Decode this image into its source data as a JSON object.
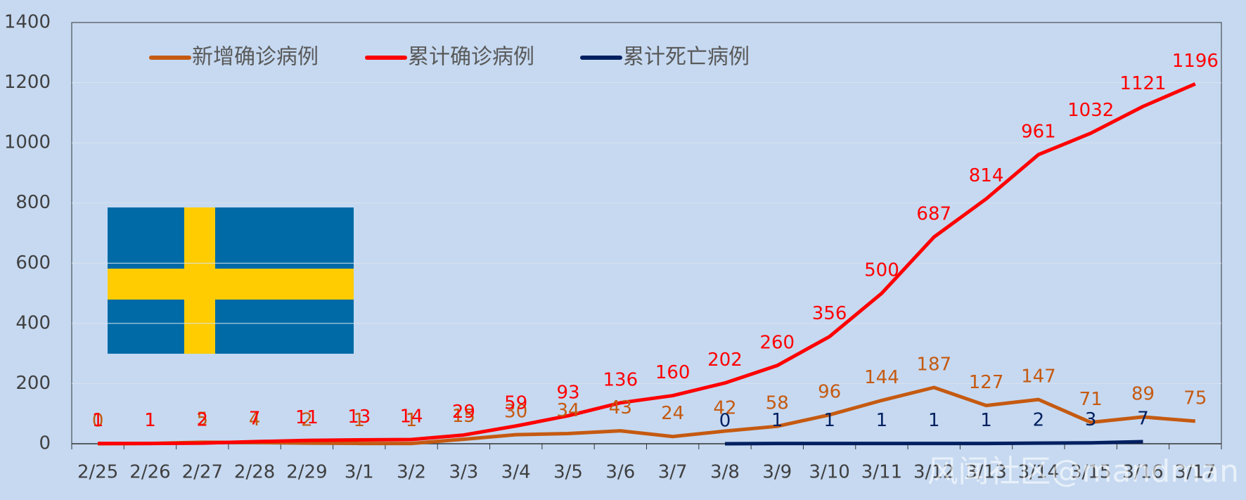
{
  "chart_data": {
    "type": "line",
    "categories": [
      "2/25",
      "2/26",
      "2/27",
      "2/28",
      "2/29",
      "3/1",
      "3/2",
      "3/3",
      "3/4",
      "3/5",
      "3/6",
      "3/7",
      "3/8",
      "3/9",
      "3/10",
      "3/11",
      "3/12",
      "3/13",
      "3/14",
      "3/15",
      "3/16",
      "3/17"
    ],
    "series": [
      {
        "name": "新增确诊病例",
        "color": "#c55a11",
        "values": [
          0,
          1,
          5,
          4,
          2,
          1,
          1,
          15,
          30,
          34,
          43,
          24,
          42,
          58,
          96,
          144,
          187,
          127,
          147,
          71,
          89,
          75
        ]
      },
      {
        "name": "累计确诊病例",
        "color": "#ff0000",
        "values": [
          1,
          1,
          2,
          7,
          11,
          13,
          14,
          29,
          59,
          93,
          136,
          160,
          202,
          260,
          356,
          500,
          687,
          814,
          961,
          1032,
          1121,
          1196
        ]
      },
      {
        "name": "累计死亡病例",
        "color": "#002060",
        "values": [
          null,
          null,
          null,
          null,
          null,
          null,
          null,
          null,
          null,
          null,
          null,
          null,
          0,
          1,
          1,
          1,
          1,
          1,
          2,
          3,
          7,
          null
        ]
      }
    ],
    "ylim": [
      0,
      1400
    ],
    "yticks": [
      0,
      200,
      400,
      600,
      800,
      1000,
      1200,
      1400
    ],
    "grid": true,
    "legend": "top",
    "watermark": "风闻社区@mandman"
  }
}
